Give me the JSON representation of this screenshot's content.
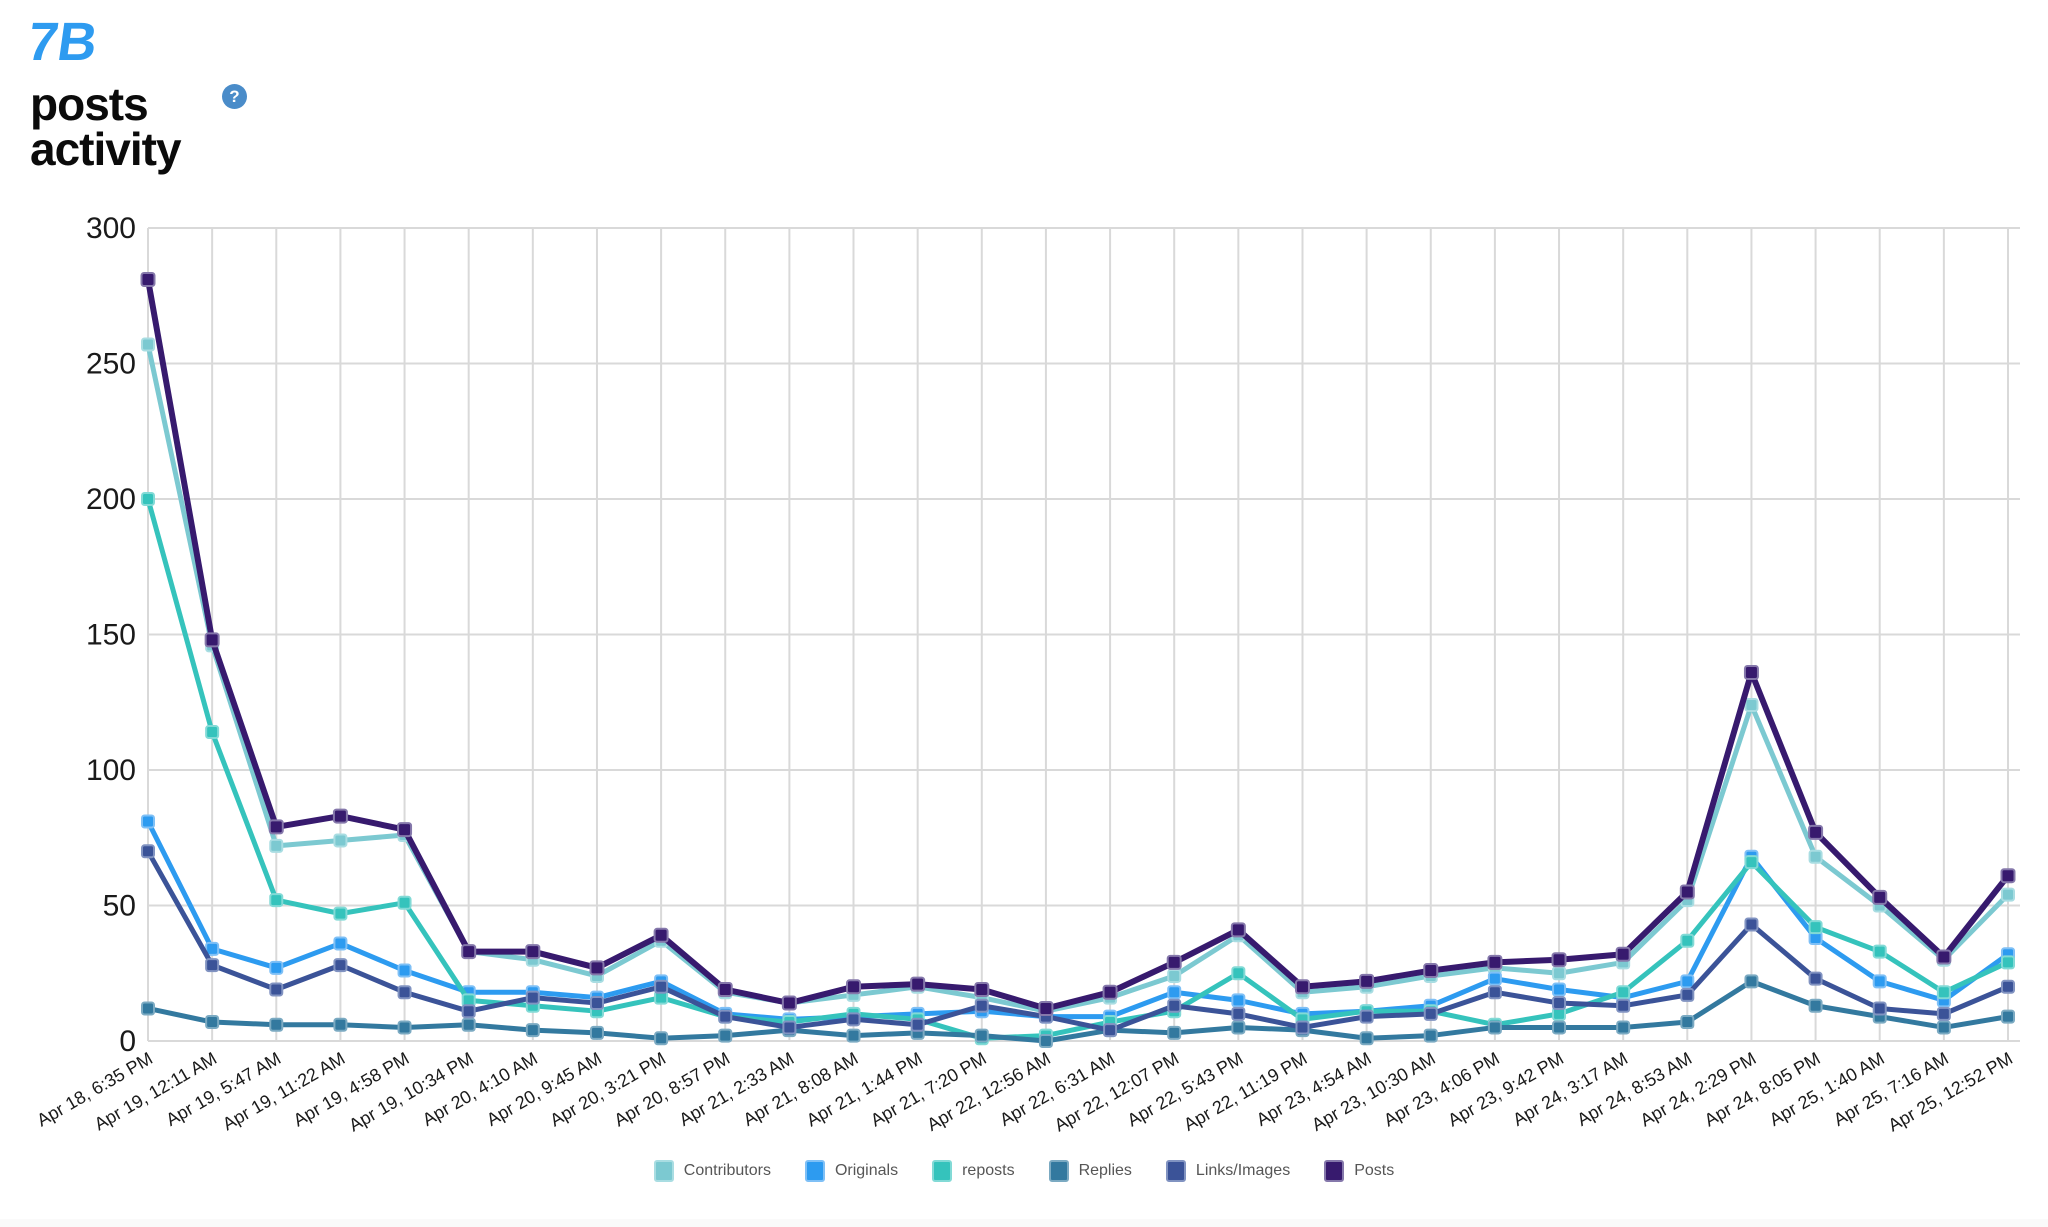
{
  "header": {
    "logo_text": "7B",
    "title_line1": "posts",
    "title_line2": "activity",
    "help_label": "?"
  },
  "colors": {
    "logo_blue": "#2E9BF0",
    "help_icon_blue": "#4A8CC9",
    "grid": "#D9D9D9",
    "axis_text": "#1A1A1A",
    "legend_text": "#565656"
  },
  "chart_data": {
    "type": "line",
    "title": "posts activity",
    "xlabel": "",
    "ylabel": "",
    "ylim": [
      0,
      300
    ],
    "y_ticks": [
      0,
      50,
      100,
      150,
      200,
      250,
      300
    ],
    "grid": true,
    "marker": "square",
    "legend_position": "bottom",
    "categories": [
      "Apr 18, 6:35 PM",
      "Apr 19, 12:11 AM",
      "Apr 19, 5:47 AM",
      "Apr 19, 11:22 AM",
      "Apr 19, 4:58 PM",
      "Apr 19, 10:34 PM",
      "Apr 20, 4:10 AM",
      "Apr 20, 9:45 AM",
      "Apr 20, 3:21 PM",
      "Apr 20, 8:57 PM",
      "Apr 21, 2:33 AM",
      "Apr 21, 8:08 AM",
      "Apr 21, 1:44 PM",
      "Apr 21, 7:20 PM",
      "Apr 22, 12:56 AM",
      "Apr 22, 6:31 AM",
      "Apr 22, 12:07 PM",
      "Apr 22, 5:43 PM",
      "Apr 22, 11:19 PM",
      "Apr 23, 4:54 AM",
      "Apr 23, 10:30 AM",
      "Apr 23, 4:06 PM",
      "Apr 23, 9:42 PM",
      "Apr 24, 3:17 AM",
      "Apr 24, 8:53 AM",
      "Apr 24, 2:29 PM",
      "Apr 24, 8:05 PM",
      "Apr 25, 1:40 AM",
      "Apr 25, 7:16 AM",
      "Apr 25, 12:52 PM"
    ],
    "series": [
      {
        "name": "Contributors",
        "color": "#7CC9D1",
        "border": "#A9DDE2",
        "values": [
          257,
          146,
          72,
          74,
          76,
          33,
          30,
          24,
          37,
          18,
          14,
          17,
          20,
          16,
          11,
          16,
          24,
          39,
          18,
          20,
          24,
          27,
          25,
          29,
          52,
          124,
          68,
          50,
          30,
          54
        ]
      },
      {
        "name": "Originals",
        "color": "#2D9BF0",
        "border": "#7FC0F6",
        "values": [
          81,
          34,
          27,
          36,
          26,
          18,
          18,
          16,
          22,
          10,
          8,
          9,
          10,
          11,
          9,
          9,
          18,
          15,
          10,
          11,
          13,
          23,
          19,
          16,
          22,
          68,
          38,
          22,
          15,
          32
        ]
      },
      {
        "name": "reposts",
        "color": "#35C3BC",
        "border": "#82DAD6",
        "values": [
          200,
          114,
          52,
          47,
          51,
          15,
          13,
          11,
          16,
          9,
          7,
          10,
          8,
          1,
          2,
          7,
          11,
          25,
          8,
          11,
          11,
          6,
          10,
          18,
          37,
          66,
          42,
          33,
          18,
          29
        ]
      },
      {
        "name": "Replies",
        "color": "#33799F",
        "border": "#7BAAC2",
        "values": [
          12,
          7,
          6,
          6,
          5,
          6,
          4,
          3,
          1,
          2,
          4,
          2,
          3,
          2,
          0,
          4,
          3,
          5,
          4,
          1,
          2,
          5,
          5,
          5,
          7,
          22,
          13,
          9,
          5,
          9
        ]
      },
      {
        "name": "Links/Images",
        "color": "#3B5398",
        "border": "#8193C1",
        "values": [
          70,
          28,
          19,
          28,
          18,
          11,
          16,
          14,
          20,
          9,
          5,
          8,
          6,
          13,
          9,
          4,
          13,
          10,
          5,
          9,
          10,
          18,
          14,
          13,
          17,
          43,
          23,
          12,
          10,
          20
        ]
      },
      {
        "name": "Posts",
        "color": "#371A6E",
        "border": "#8578AB",
        "values": [
          281,
          148,
          79,
          83,
          78,
          33,
          33,
          27,
          39,
          19,
          14,
          20,
          21,
          19,
          12,
          18,
          29,
          41,
          20,
          22,
          26,
          29,
          30,
          32,
          55,
          136,
          77,
          53,
          31,
          61
        ]
      }
    ]
  }
}
